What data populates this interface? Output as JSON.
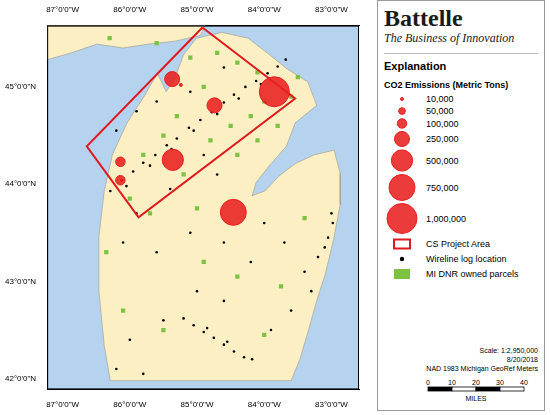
{
  "header": {
    "title": "Battelle",
    "subtitle": "The Business of Innovation"
  },
  "legend_title": "Explanation",
  "chart_data": {
    "type": "bubble",
    "xlim": [
      -87.23,
      -82.59
    ],
    "ylim": [
      41.89,
      45.63
    ],
    "xticks": [
      {
        "value": -87,
        "label": "87°0'0\"W"
      },
      {
        "value": -86,
        "label": "86°0'0\"W"
      },
      {
        "value": -85,
        "label": "85°0'0\"W"
      },
      {
        "value": -84,
        "label": "84°0'0\"W"
      },
      {
        "value": -83,
        "label": "83°0'0\"W"
      }
    ],
    "yticks": [
      {
        "value": 42,
        "label": "42°0'0\"N"
      },
      {
        "value": 43,
        "label": "43°0'0\"N"
      },
      {
        "value": 44,
        "label": "44°0'0\"N"
      },
      {
        "value": 45,
        "label": "45°0'0\"N"
      }
    ],
    "grid": false,
    "legend": "right",
    "size_legend": [
      {
        "value": 10000,
        "label": "10,000"
      },
      {
        "value": 50000,
        "label": "50,000"
      },
      {
        "value": 100000,
        "label": "100,000"
      },
      {
        "value": 250000,
        "label": "250,000"
      },
      {
        "value": 500000,
        "label": "500,000"
      },
      {
        "value": 750000,
        "label": "750,000"
      },
      {
        "value": 1000000,
        "label": "1,000,000"
      }
    ],
    "series": [
      {
        "name": "CO2 Emissions (Metric Tons)",
        "type": "bubble",
        "color": "#e8201f",
        "x": [
          -83.85,
          -85.37,
          -85.24,
          -84.74,
          -86.14,
          -86.14,
          -85.36,
          -84.46
        ],
        "y": [
          44.95,
          45.08,
          45.02,
          44.81,
          44.23,
          44.04,
          44.25,
          43.71
        ],
        "sizes": [
          1000000,
          250000,
          10000,
          250000,
          100000,
          100000,
          500000,
          750000
        ]
      },
      {
        "name": "CS Project Area",
        "type": "line",
        "color": "#e0191e",
        "x": [
          -84.92,
          -83.54,
          -85.87,
          -86.64
        ],
        "y": [
          45.61,
          44.88,
          43.66,
          44.39
        ]
      },
      {
        "name": "Wireline log location",
        "type": "scatter",
        "marker": "circle",
        "color": "#000000",
        "x": [
          -86.29,
          -86.12,
          -85.95,
          -85.8,
          -85.62,
          -85.45,
          -85.3,
          -85.12,
          -84.95,
          -84.78,
          -84.6,
          -84.45,
          -84.28,
          -84.12,
          -83.95,
          -83.8,
          -83.68,
          -86.05,
          -85.7,
          -85.38,
          -85.05,
          -84.7,
          -84.38,
          -84.05,
          -86.2,
          -85.9,
          -85.6,
          -85.1,
          -84.6,
          -84.9,
          -84.7,
          -85.4,
          -85.9,
          -86.1,
          -85.6,
          -85.1,
          -84.6,
          -84.2,
          -84.0,
          -83.7,
          -83.4,
          -83.2,
          -83.1,
          -83.3,
          -83.6,
          -83.9,
          -84.6,
          -85.0,
          -85.5,
          -86.0,
          -86.2,
          -85.8,
          -85.2,
          -85.05,
          -84.9,
          -84.75,
          -84.6,
          -84.45,
          -84.3,
          -84.18,
          -84.85,
          -84.55,
          -83.05,
          -82.98,
          -83.0
        ],
        "y": [
          43.93,
          44.04,
          44.13,
          44.22,
          44.3,
          44.4,
          44.47,
          44.58,
          44.66,
          44.74,
          44.84,
          44.92,
          45.0,
          45.06,
          45.14,
          45.21,
          45.28,
          43.98,
          44.19,
          44.36,
          44.55,
          44.72,
          44.88,
          45.03,
          44.55,
          44.75,
          44.85,
          44.95,
          45.2,
          44.3,
          44.1,
          43.95,
          43.7,
          43.4,
          43.3,
          43.5,
          43.4,
          43.2,
          43.6,
          43.4,
          43.1,
          43.25,
          43.35,
          42.9,
          42.7,
          42.5,
          42.8,
          42.9,
          42.6,
          42.4,
          42.1,
          42.05,
          42.62,
          42.55,
          42.48,
          42.42,
          42.35,
          42.28,
          42.22,
          42.2,
          42.52,
          42.38,
          43.45,
          43.6,
          43.7
        ]
      },
      {
        "name": "MI DNR owned parcels",
        "type": "scatter",
        "marker": "square",
        "color": "#7dc242",
        "x": [
          -85.1,
          -84.7,
          -84.4,
          -84.1,
          -84.9,
          -85.3,
          -84.5,
          -84.2,
          -84.0,
          -83.8,
          -84.8,
          -85.5,
          -85.8,
          -86.0,
          -85.7,
          -85.2,
          -84.4,
          -84.1,
          -83.6,
          -83.5,
          -84.9,
          -84.4,
          -83.75,
          -85.5,
          -86.1,
          -84.0,
          -83.4,
          -85.0,
          -86.35,
          -85.6,
          -86.3
        ],
        "y": [
          45.3,
          45.35,
          45.25,
          45.15,
          45.0,
          44.7,
          44.6,
          44.7,
          44.85,
          44.6,
          44.45,
          44.5,
          44.3,
          43.85,
          43.7,
          44.1,
          44.3,
          44.45,
          44.9,
          45.1,
          43.2,
          43.05,
          42.95,
          42.5,
          42.7,
          42.45,
          43.65,
          43.75,
          43.3,
          45.45,
          45.5
        ]
      }
    ],
    "land": {
      "color": "#fcefc4",
      "polygons": [
        {
          "x": [
            -85.01,
            -84.63,
            -84.24,
            -83.92,
            -83.67,
            -83.35,
            -83.22,
            -83.54,
            -83.67,
            -83.9,
            -84.12,
            -84.18,
            -83.99,
            -83.77,
            -83.54,
            -83.26,
            -82.96,
            -82.87,
            -82.87,
            -82.96,
            -83.09,
            -83.22,
            -83.35,
            -83.47,
            -83.6,
            -86.29,
            -86.38,
            -86.46,
            -86.46,
            -86.38,
            -86.26,
            -86.04,
            -85.78,
            -85.59,
            -85.46,
            -85.33,
            -85.2
          ],
          "y": [
            45.5,
            45.56,
            45.5,
            45.33,
            45.19,
            45.05,
            44.81,
            44.63,
            44.39,
            44.21,
            44.02,
            43.88,
            43.93,
            44.09,
            44.21,
            44.3,
            44.35,
            44.11,
            43.79,
            43.46,
            43.08,
            42.8,
            42.48,
            42.2,
            41.98,
            41.98,
            42.34,
            42.9,
            43.46,
            43.93,
            44.3,
            44.63,
            44.91,
            45.14,
            44.95,
            45.09,
            45.33
          ]
        },
        {
          "x": [
            -87.23,
            -84.88,
            -84.95,
            -85.33,
            -85.72,
            -86.1,
            -86.49,
            -86.87,
            -87.23
          ],
          "y": [
            45.63,
            45.63,
            45.53,
            45.47,
            45.44,
            45.4,
            45.44,
            45.35,
            45.28
          ]
        }
      ]
    }
  },
  "scale": {
    "text": "Scale: 1:2,950,000",
    "date": "8/20/2018",
    "datum": "NAD 1983 Michigan GeoRef Meters",
    "ticks": [
      0,
      10,
      20,
      30,
      40
    ],
    "unit": "MILES"
  }
}
